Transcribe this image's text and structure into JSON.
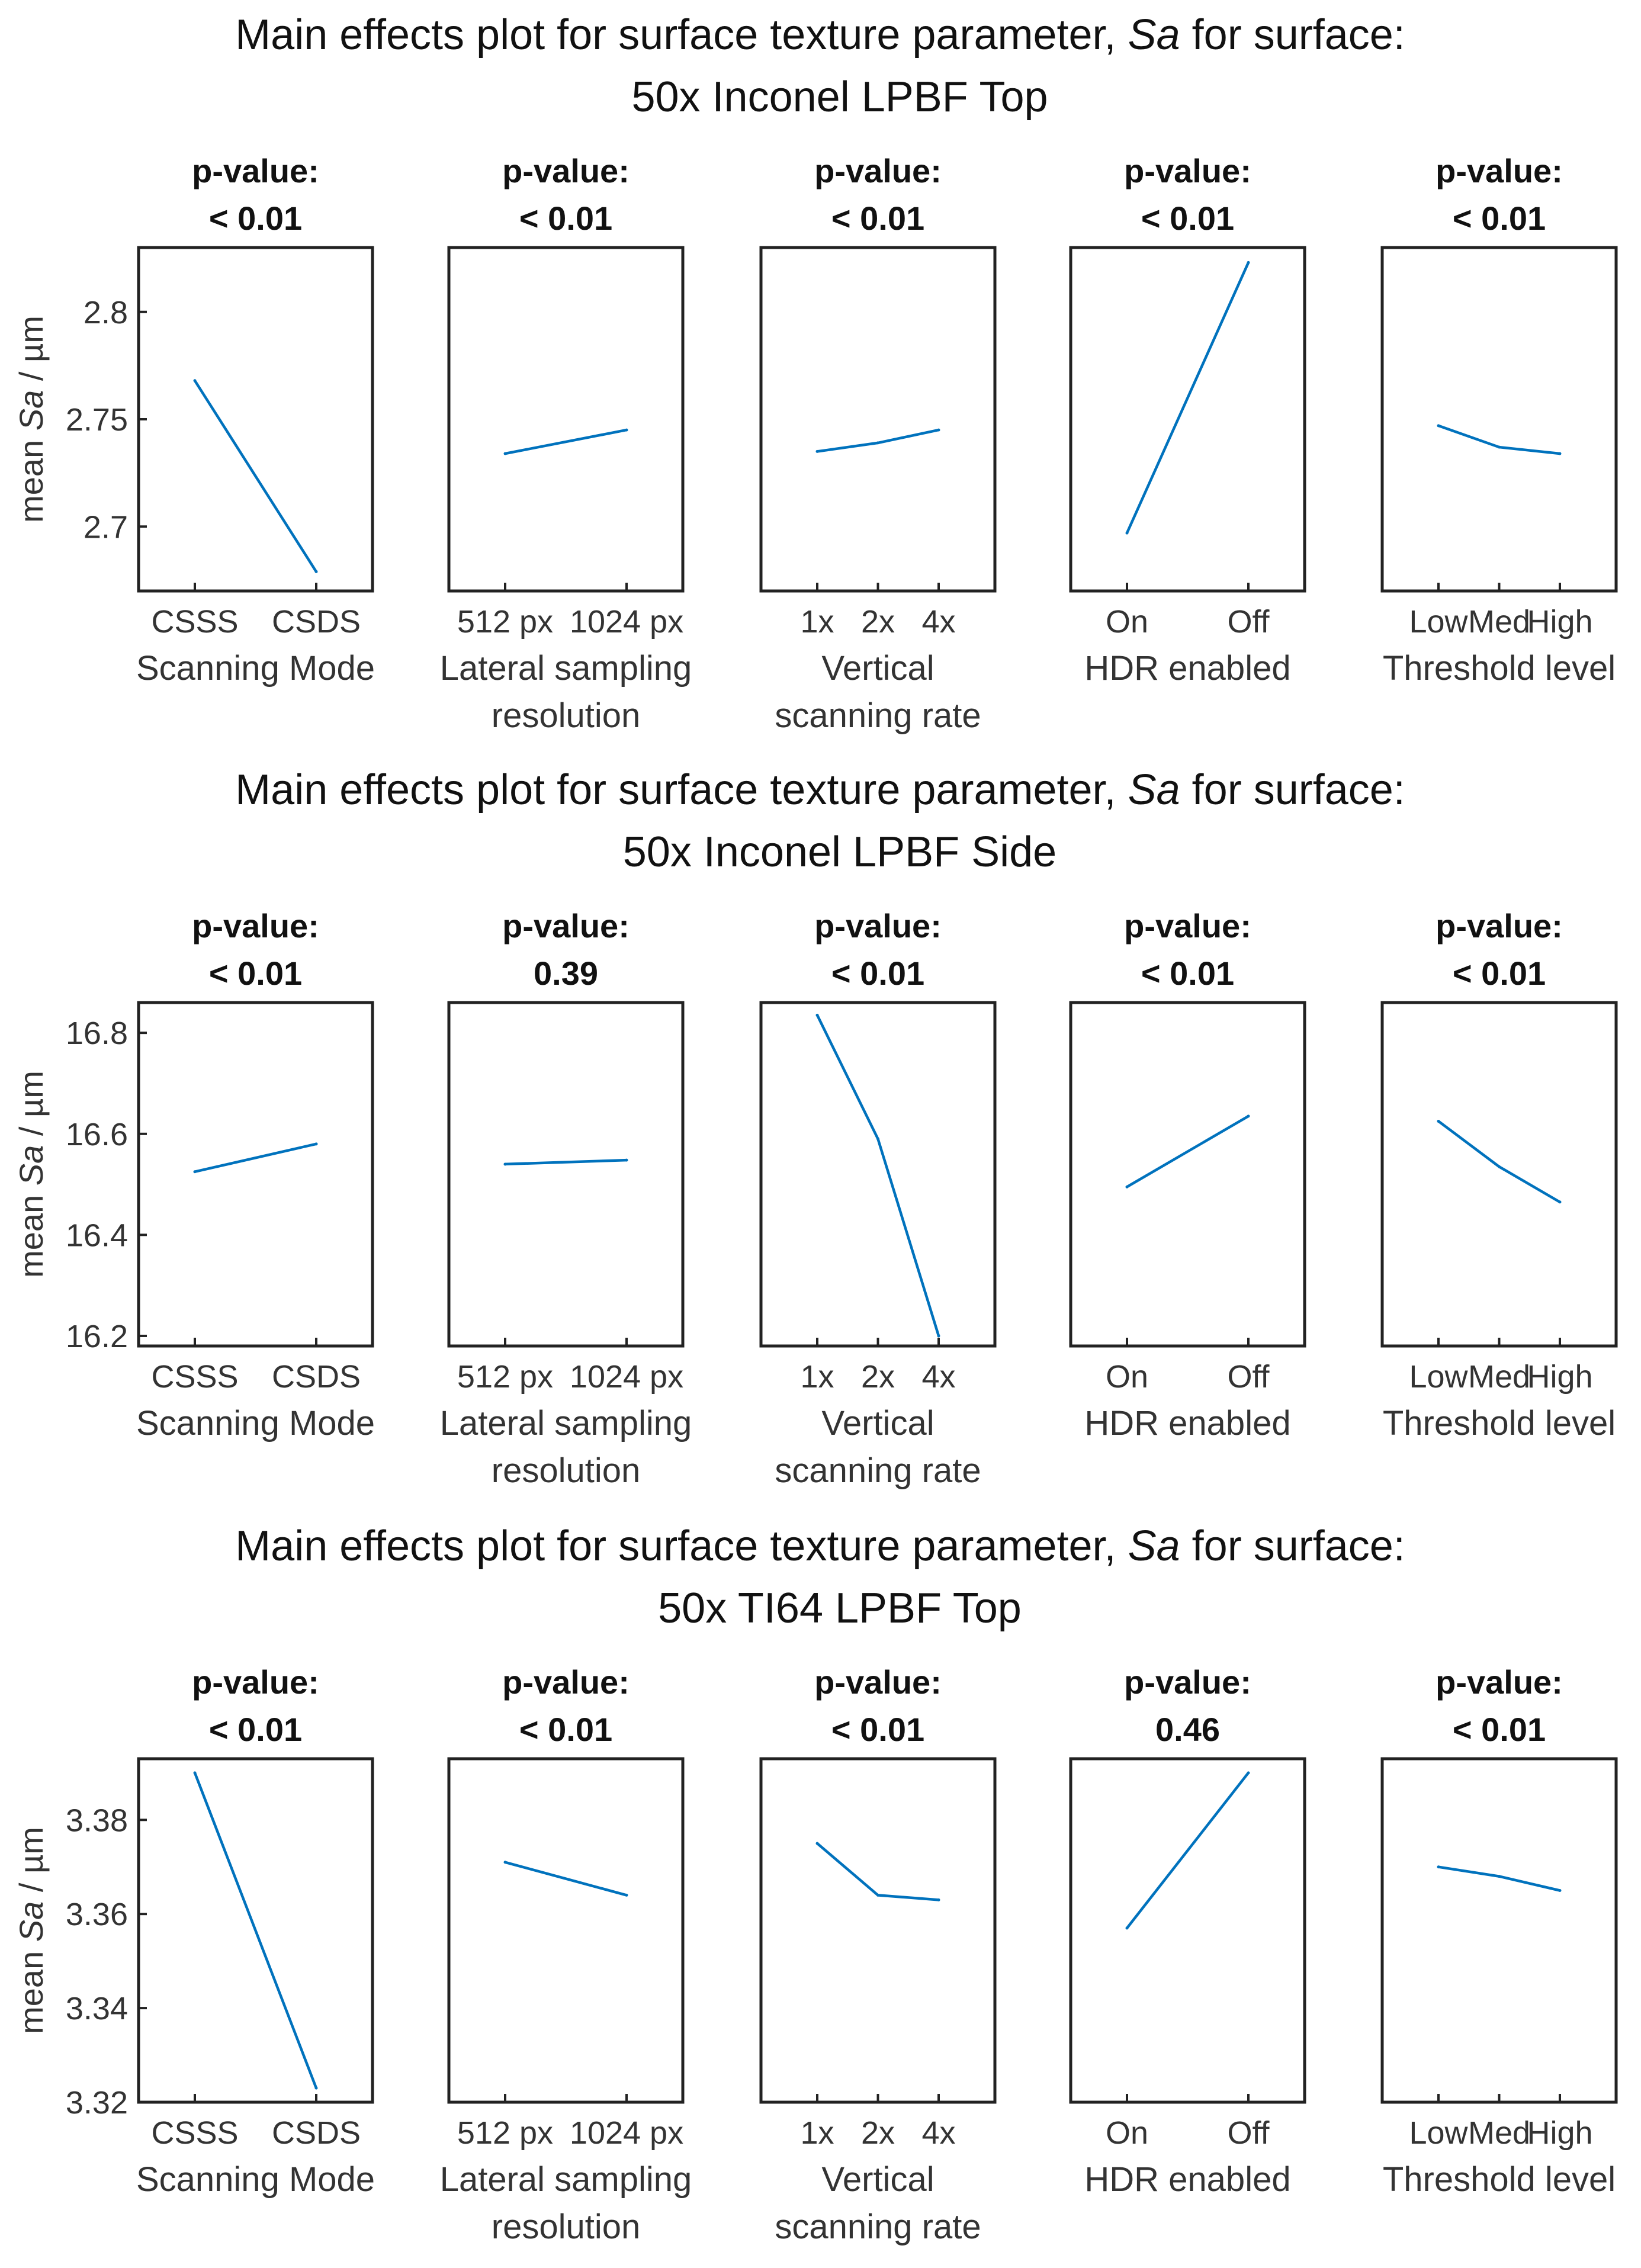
{
  "series_color": "#0072BD",
  "chart_data": [
    {
      "type": "line",
      "title_prefix": "Main effects plot for surface texture parameter,",
      "title_param": "Sa",
      "title_suffix": "for surface:",
      "surface": "50x Inconel LPBF Top",
      "ylabel_prefix": "mean",
      "ylabel_param": "Sa",
      "ylabel_unit": "/ µm",
      "ylim": [
        2.67,
        2.83
      ],
      "yticks": [
        2.7,
        2.75,
        2.8
      ],
      "yticklabels": [
        "2.7",
        "2.75",
        "2.8"
      ],
      "factors": [
        {
          "pvalue_label": "p-value:",
          "pvalue": "< 0.01",
          "xlabel": [
            "Scanning Mode"
          ],
          "categories": [
            "CSSS",
            "CSDS"
          ],
          "values": [
            2.768,
            2.679
          ]
        },
        {
          "pvalue_label": "p-value:",
          "pvalue": "< 0.01",
          "xlabel": [
            "Lateral sampling",
            "resolution"
          ],
          "categories": [
            "512 px",
            "1024 px"
          ],
          "values": [
            2.734,
            2.745
          ]
        },
        {
          "pvalue_label": "p-value:",
          "pvalue": "< 0.01",
          "xlabel": [
            "Vertical",
            "scanning rate"
          ],
          "categories": [
            "1x",
            "2x",
            "4x"
          ],
          "values": [
            2.735,
            2.739,
            2.745
          ]
        },
        {
          "pvalue_label": "p-value:",
          "pvalue": "< 0.01",
          "xlabel": [
            "HDR enabled"
          ],
          "categories": [
            "On",
            "Off"
          ],
          "values": [
            2.697,
            2.823
          ]
        },
        {
          "pvalue_label": "p-value:",
          "pvalue": "< 0.01",
          "xlabel": [
            "Threshold level"
          ],
          "categories": [
            "Low",
            "Med",
            "High"
          ],
          "values": [
            2.747,
            2.737,
            2.734
          ]
        }
      ]
    },
    {
      "type": "line",
      "title_prefix": "Main effects plot for surface texture parameter,",
      "title_param": "Sa",
      "title_suffix": "for surface:",
      "surface": "50x Inconel LPBF Side",
      "ylabel_prefix": "mean",
      "ylabel_param": "Sa",
      "ylabel_unit": "/ µm",
      "ylim": [
        16.18,
        16.86
      ],
      "yticks": [
        16.2,
        16.4,
        16.6,
        16.8
      ],
      "yticklabels": [
        "16.2",
        "16.4",
        "16.6",
        "16.8"
      ],
      "factors": [
        {
          "pvalue_label": "p-value:",
          "pvalue": "< 0.01",
          "xlabel": [
            "Scanning Mode"
          ],
          "categories": [
            "CSSS",
            "CSDS"
          ],
          "values": [
            16.525,
            16.58
          ]
        },
        {
          "pvalue_label": "p-value:",
          "pvalue": "0.39",
          "xlabel": [
            "Lateral sampling",
            "resolution"
          ],
          "categories": [
            "512 px",
            "1024 px"
          ],
          "values": [
            16.54,
            16.548
          ]
        },
        {
          "pvalue_label": "p-value:",
          "pvalue": "< 0.01",
          "xlabel": [
            "Vertical",
            "scanning rate"
          ],
          "categories": [
            "1x",
            "2x",
            "4x"
          ],
          "values": [
            16.835,
            16.59,
            16.2
          ]
        },
        {
          "pvalue_label": "p-value:",
          "pvalue": "< 0.01",
          "xlabel": [
            "HDR enabled"
          ],
          "categories": [
            "On",
            "Off"
          ],
          "values": [
            16.495,
            16.635
          ]
        },
        {
          "pvalue_label": "p-value:",
          "pvalue": "< 0.01",
          "xlabel": [
            "Threshold level"
          ],
          "categories": [
            "Low",
            "Med",
            "High"
          ],
          "values": [
            16.625,
            16.535,
            16.465
          ]
        }
      ]
    },
    {
      "type": "line",
      "title_prefix": "Main effects plot for surface texture parameter,",
      "title_param": "Sa",
      "title_suffix": "for surface:",
      "surface": "50x TI64 LPBF Top",
      "ylabel_prefix": "mean",
      "ylabel_param": "Sa",
      "ylabel_unit": "/ µm",
      "ylim": [
        3.32,
        3.393
      ],
      "yticks": [
        3.32,
        3.34,
        3.36,
        3.38
      ],
      "yticklabels": [
        "3.32",
        "3.34",
        "3.36",
        "3.38"
      ],
      "factors": [
        {
          "pvalue_label": "p-value:",
          "pvalue": "< 0.01",
          "xlabel": [
            "Scanning Mode"
          ],
          "categories": [
            "CSSS",
            "CSDS"
          ],
          "values": [
            3.39,
            3.323
          ]
        },
        {
          "pvalue_label": "p-value:",
          "pvalue": "< 0.01",
          "xlabel": [
            "Lateral sampling",
            "resolution"
          ],
          "categories": [
            "512 px",
            "1024 px"
          ],
          "values": [
            3.371,
            3.364
          ]
        },
        {
          "pvalue_label": "p-value:",
          "pvalue": "< 0.01",
          "xlabel": [
            "Vertical",
            "scanning rate"
          ],
          "categories": [
            "1x",
            "2x",
            "4x"
          ],
          "values": [
            3.375,
            3.364,
            3.363
          ]
        },
        {
          "pvalue_label": "p-value:",
          "pvalue": "0.46",
          "xlabel": [
            "HDR enabled"
          ],
          "categories": [
            "On",
            "Off"
          ],
          "values": [
            3.357,
            3.39
          ]
        },
        {
          "pvalue_label": "p-value:",
          "pvalue": "< 0.01",
          "xlabel": [
            "Threshold level"
          ],
          "categories": [
            "Low",
            "Med",
            "High"
          ],
          "values": [
            3.37,
            3.368,
            3.365
          ]
        }
      ]
    }
  ]
}
